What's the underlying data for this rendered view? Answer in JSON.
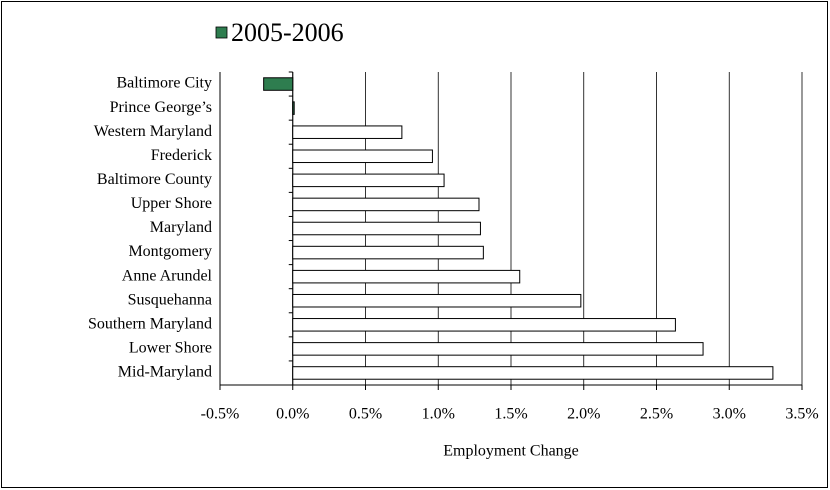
{
  "chart_data": {
    "type": "hbar",
    "categories": [
      "Baltimore City",
      "Prince George’s",
      "Western Maryland",
      "Frederick",
      "Baltimore County",
      "Upper Shore",
      "Maryland",
      "Montgomery",
      "Anne Arundel",
      "Susquehanna",
      "Southern Maryland",
      "Lower Shore",
      "Mid-Maryland"
    ],
    "series": [
      {
        "name": "2005-2006",
        "color": "#2e7d4f",
        "colors": [
          "#2e7d4f",
          "#2e7d4f",
          "#ffffff",
          "#ffffff",
          "#ffffff",
          "#ffffff",
          "#ffffff",
          "#ffffff",
          "#ffffff",
          "#ffffff",
          "#ffffff",
          "#ffffff",
          "#ffffff"
        ],
        "values": [
          -0.2,
          0.01,
          0.75,
          0.96,
          1.04,
          1.28,
          1.29,
          1.31,
          1.56,
          1.98,
          2.63,
          2.82,
          3.3
        ]
      }
    ],
    "x_label": "Employment Change",
    "xlim": [
      -0.5,
      3.5
    ],
    "xticks": [
      {
        "value": -0.5,
        "label": "-0.5%"
      },
      {
        "value": 0,
        "label": "0.0%"
      },
      {
        "value": 0.5,
        "label": "0.5%"
      },
      {
        "value": 1,
        "label": "1.0%"
      },
      {
        "value": 1.5,
        "label": "1.5%"
      },
      {
        "value": 2,
        "label": "2.0%"
      },
      {
        "value": 2.5,
        "label": "2.5%"
      },
      {
        "value": 3,
        "label": "3.0%"
      },
      {
        "value": 3.5,
        "label": "3.5%"
      }
    ],
    "grid": true
  }
}
